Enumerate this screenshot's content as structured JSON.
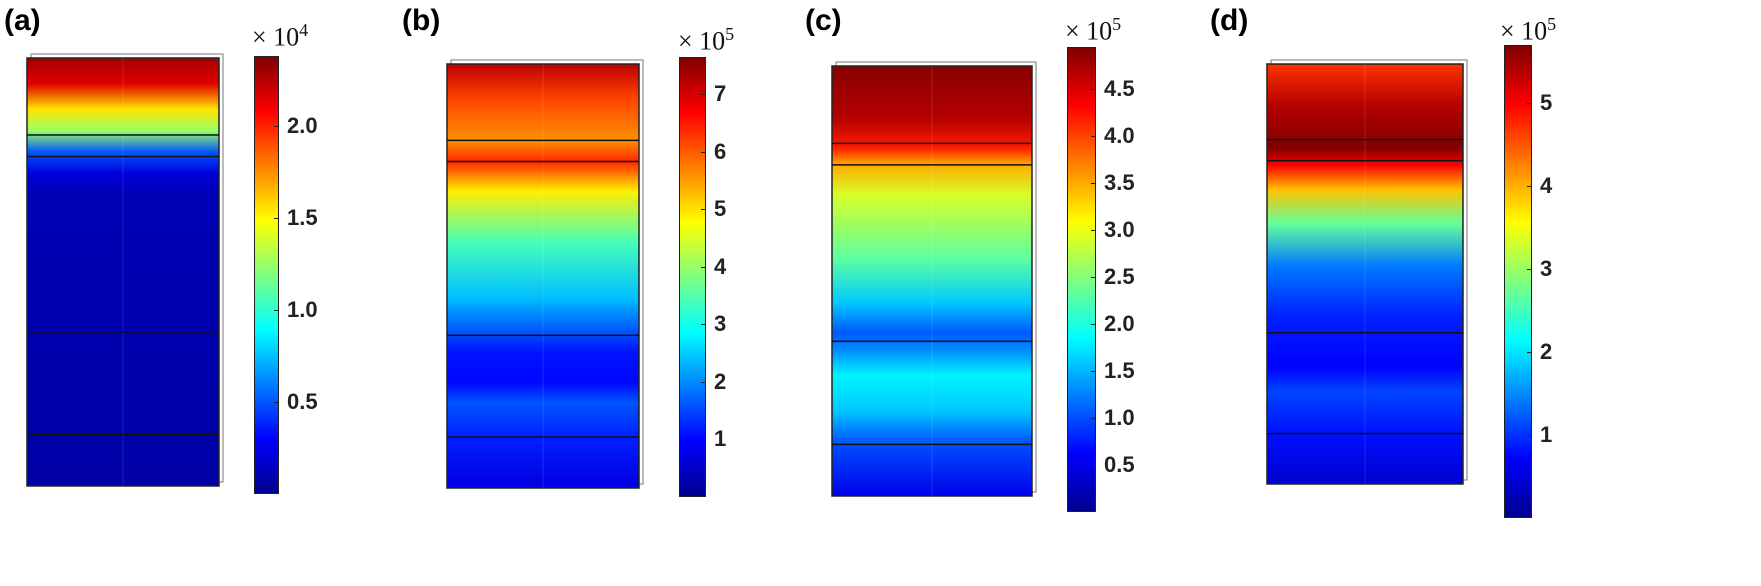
{
  "jet": [
    "#00008f",
    "#0000ff",
    "#007fff",
    "#00ffff",
    "#7fff7f",
    "#ffff00",
    "#ff7f00",
    "#ff0000",
    "#800000"
  ],
  "panels": [
    {
      "label": "(a)",
      "multiplier_base": "× 10",
      "multiplier_exp": "4",
      "ticks": [
        "0.5",
        "1.0",
        "1.5",
        "2.0"
      ],
      "tick_values": [
        0.5,
        1.0,
        1.5,
        2.0
      ],
      "range": [
        0.0,
        2.38
      ],
      "profile": [
        [
          0.0,
          2.3
        ],
        [
          0.06,
          2.15
        ],
        [
          0.12,
          1.55
        ],
        [
          0.17,
          1.25
        ],
        [
          0.22,
          0.5
        ],
        [
          0.27,
          0.2
        ],
        [
          0.32,
          0.1
        ],
        [
          1.0,
          0.06
        ]
      ]
    },
    {
      "label": "(b)",
      "multiplier_base": "× 10",
      "multiplier_exp": "5",
      "ticks": [
        "1",
        "2",
        "3",
        "4",
        "5",
        "6",
        "7"
      ],
      "tick_values": [
        1,
        2,
        3,
        4,
        5,
        6,
        7
      ],
      "range": [
        0.0,
        7.65
      ],
      "profile": [
        [
          0.0,
          7.2
        ],
        [
          0.08,
          6.2
        ],
        [
          0.18,
          5.6
        ],
        [
          0.23,
          6.4
        ],
        [
          0.3,
          4.9
        ],
        [
          0.42,
          3.4
        ],
        [
          0.55,
          2.4
        ],
        [
          0.68,
          1.1
        ],
        [
          0.75,
          1.0
        ],
        [
          0.8,
          1.6
        ],
        [
          0.88,
          1.2
        ],
        [
          1.0,
          0.7
        ]
      ]
    },
    {
      "label": "(c)",
      "multiplier_base": "× 10",
      "multiplier_exp": "5",
      "ticks": [
        "0.5",
        "1.0",
        "1.5",
        "2.0",
        "2.5",
        "3.0",
        "3.5",
        "4.0",
        "4.5"
      ],
      "tick_values": [
        0.5,
        1.0,
        1.5,
        2.0,
        2.5,
        3.0,
        3.5,
        4.0,
        4.5
      ],
      "range": [
        0.0,
        4.95
      ],
      "profile": [
        [
          0.0,
          4.9
        ],
        [
          0.12,
          4.7
        ],
        [
          0.19,
          4.2
        ],
        [
          0.23,
          3.5
        ],
        [
          0.3,
          2.9
        ],
        [
          0.45,
          2.3
        ],
        [
          0.55,
          1.6
        ],
        [
          0.62,
          1.05
        ],
        [
          0.66,
          1.3
        ],
        [
          0.72,
          1.8
        ],
        [
          0.8,
          1.6
        ],
        [
          0.88,
          1.0
        ],
        [
          1.0,
          0.5
        ]
      ]
    },
    {
      "label": "(d)",
      "multiplier_base": "× 10",
      "multiplier_exp": "5",
      "ticks": [
        "1",
        "2",
        "3",
        "4",
        "5"
      ],
      "tick_values": [
        1,
        2,
        3,
        4,
        5
      ],
      "range": [
        0.0,
        5.7
      ],
      "profile": [
        [
          0.0,
          4.7
        ],
        [
          0.1,
          5.4
        ],
        [
          0.2,
          5.7
        ],
        [
          0.24,
          5.0
        ],
        [
          0.3,
          3.9
        ],
        [
          0.38,
          2.7
        ],
        [
          0.48,
          1.4
        ],
        [
          0.6,
          0.9
        ],
        [
          0.72,
          0.7
        ],
        [
          0.78,
          1.1
        ],
        [
          0.88,
          0.8
        ],
        [
          1.0,
          0.4
        ]
      ]
    }
  ]
}
